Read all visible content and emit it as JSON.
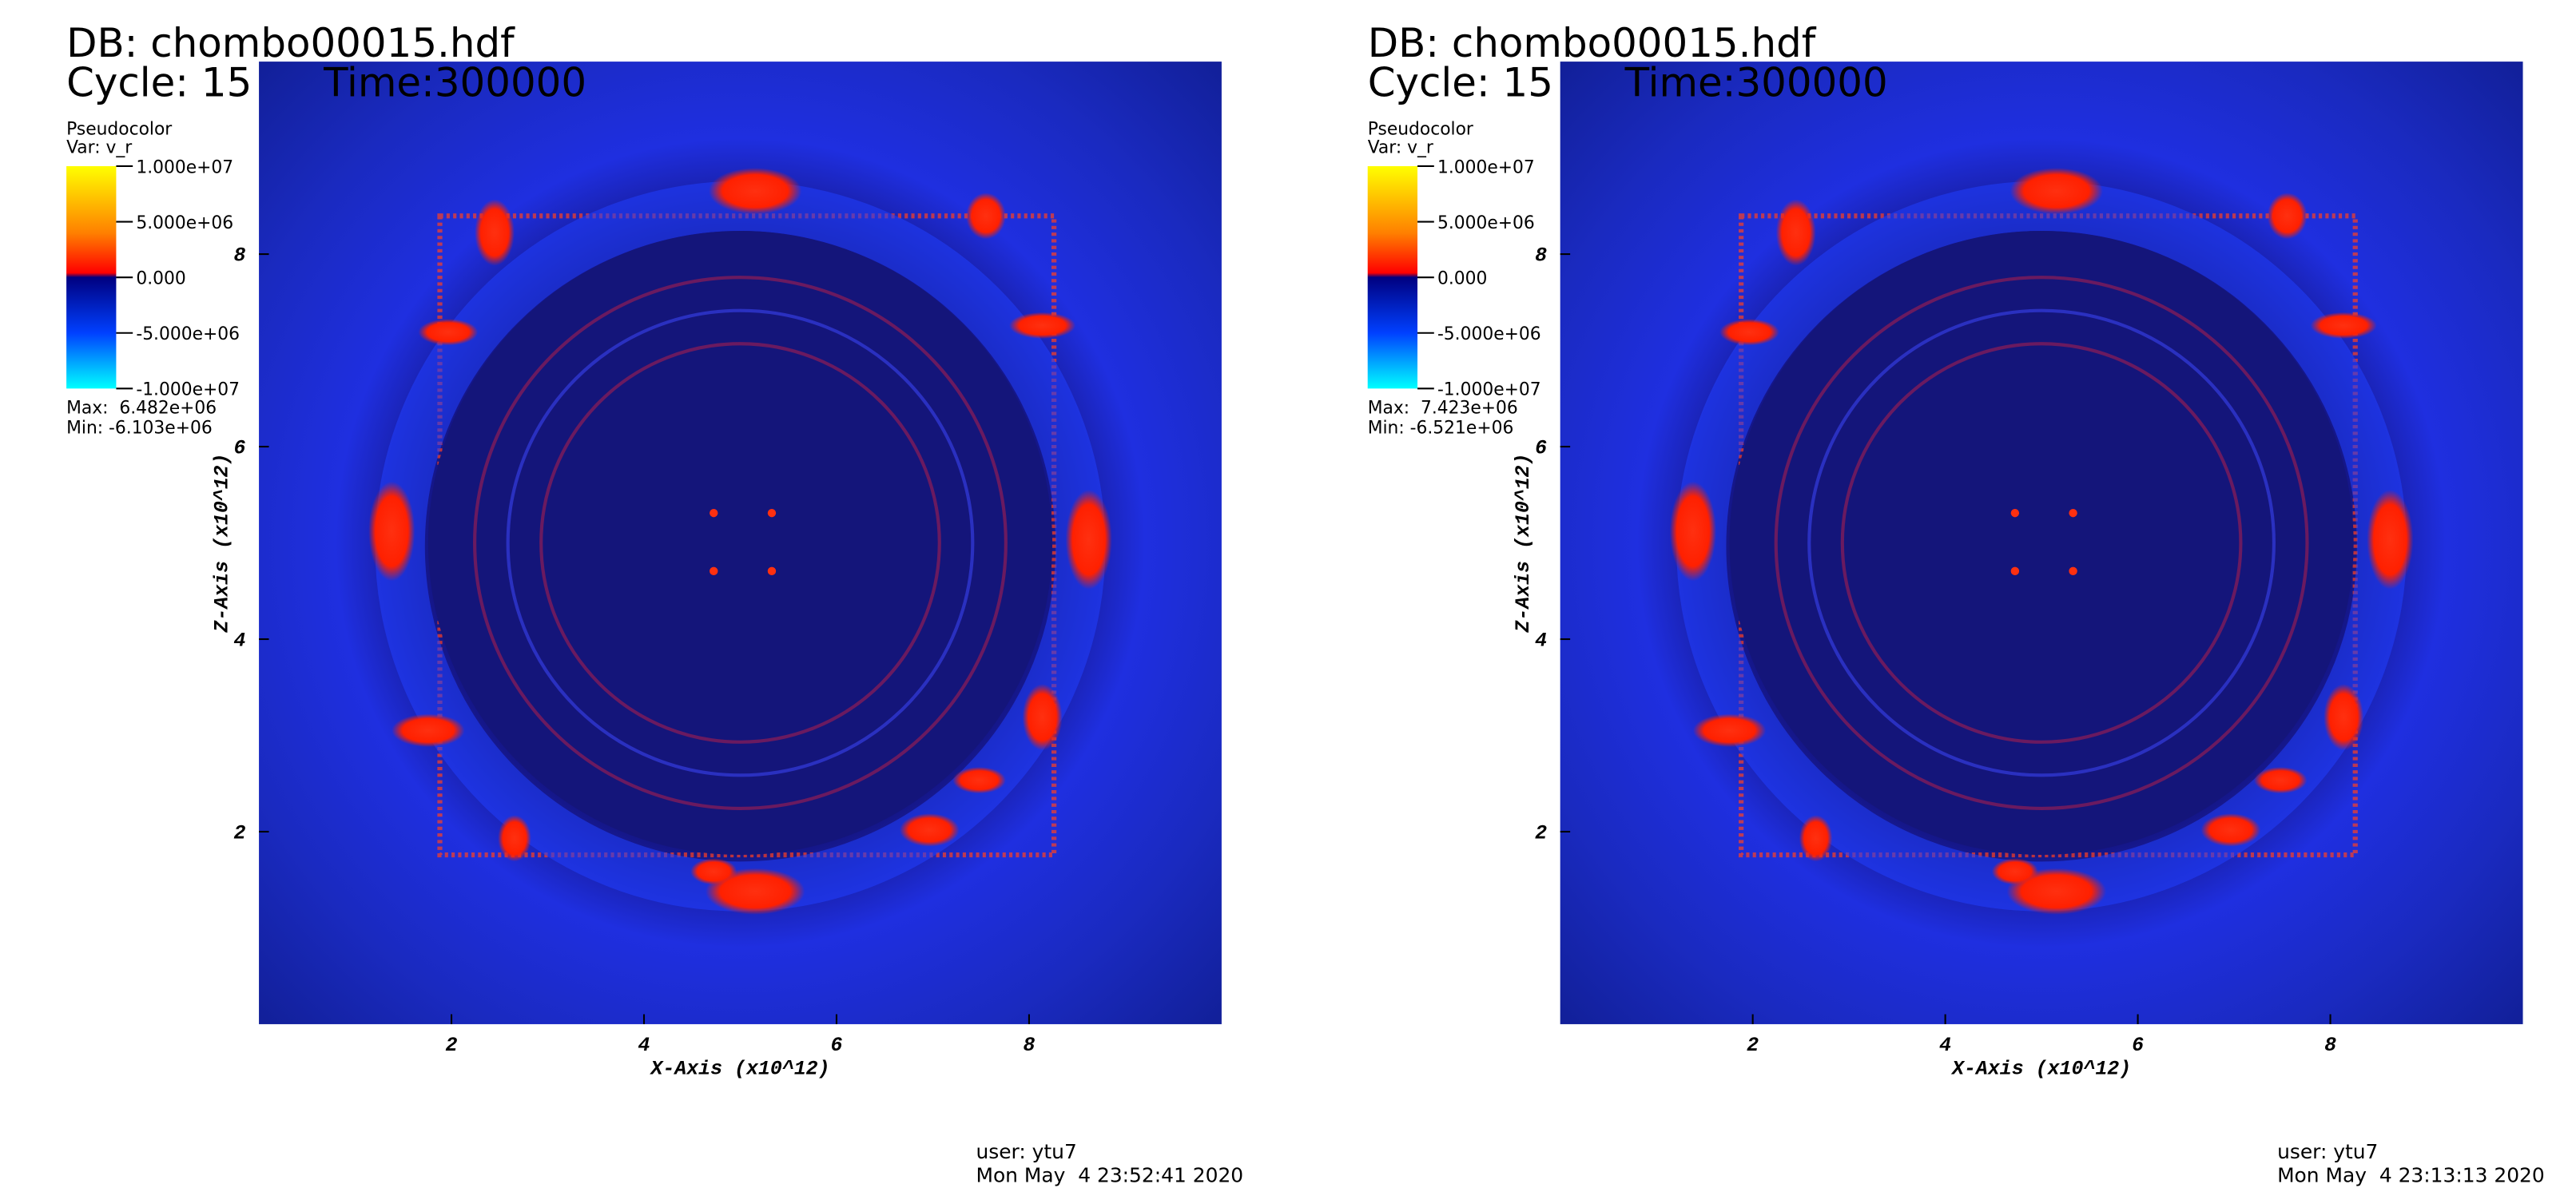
{
  "panels": [
    {
      "db": "DB: chombo00015.hdf",
      "cycle": "Cycle: 15",
      "time": "Time:300000",
      "legend": {
        "plot": "Pseudocolor",
        "var": "Var: v_r",
        "range": [
          -10000000,
          10000000
        ],
        "ticks": [
          {
            "value": 10000000,
            "label": "1.000e+07"
          },
          {
            "value": 5000000,
            "label": "5.000e+06"
          },
          {
            "value": 0,
            "label": "0.000"
          },
          {
            "value": -5000000,
            "label": "-5.000e+06"
          },
          {
            "value": -10000000,
            "label": "-1.000e+07"
          }
        ],
        "max": "Max:  6.482e+06",
        "min": "Min: -6.103e+06"
      },
      "x_axis": {
        "label": "X-Axis (x10^12)",
        "lim": [
          0,
          10
        ],
        "ticks": [
          2,
          4,
          6,
          8
        ]
      },
      "z_axis": {
        "label": "Z-Axis (x10^12)",
        "lim": [
          0,
          10
        ],
        "ticks": [
          2,
          4,
          6,
          8
        ]
      },
      "user": "user: ytu7",
      "date": "Mon May  4 23:52:41 2020"
    },
    {
      "db": "DB: chombo00015.hdf",
      "cycle": "Cycle: 15",
      "time": "Time:300000",
      "legend": {
        "plot": "Pseudocolor",
        "var": "Var: v_r",
        "range": [
          -10000000,
          10000000
        ],
        "ticks": [
          {
            "value": 10000000,
            "label": "1.000e+07"
          },
          {
            "value": 5000000,
            "label": "5.000e+06"
          },
          {
            "value": 0,
            "label": "0.000"
          },
          {
            "value": -5000000,
            "label": "-5.000e+06"
          },
          {
            "value": -10000000,
            "label": "-1.000e+07"
          }
        ],
        "max": "Max:  7.423e+06",
        "min": "Min: -6.521e+06"
      },
      "x_axis": {
        "label": "X-Axis (x10^12)",
        "lim": [
          0,
          10
        ],
        "ticks": [
          2,
          4,
          6,
          8
        ]
      },
      "z_axis": {
        "label": "Z-Axis (x10^12)",
        "lim": [
          0,
          10
        ],
        "ticks": [
          2,
          4,
          6,
          8
        ]
      },
      "user": "user: ytu7",
      "date": "Mon May  4 23:13:13 2020"
    }
  ]
}
